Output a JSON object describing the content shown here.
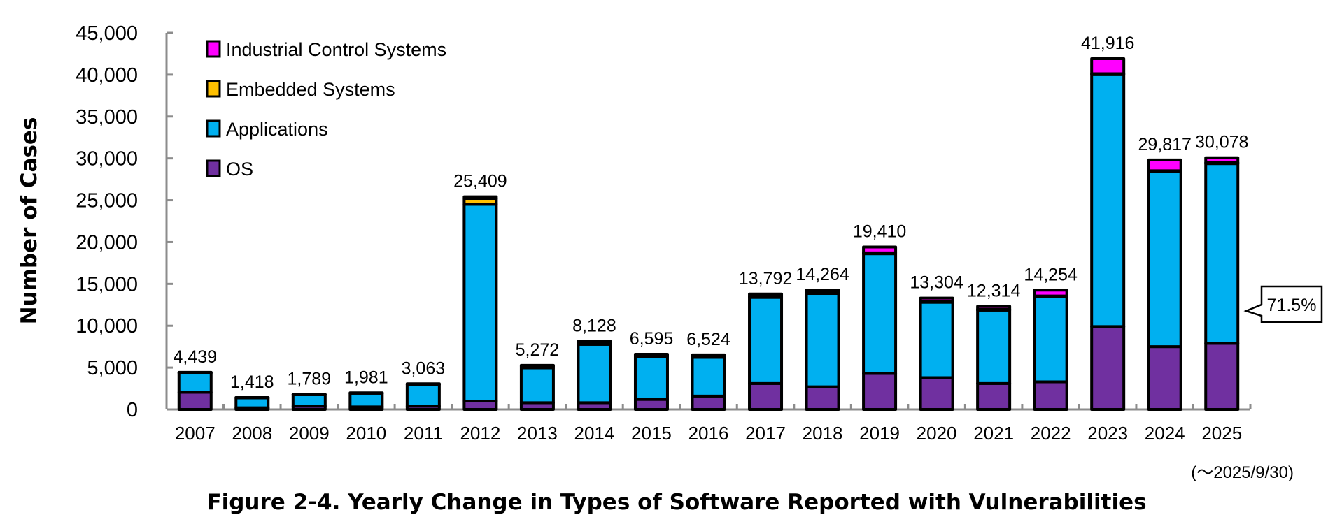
{
  "chart_data": {
    "type": "bar",
    "stacked": true,
    "title": "Figure 2-4. Yearly Change in Types of Software Reported with Vulnerabilities",
    "xlabel": "",
    "ylabel": "Number of Cases",
    "ylim": [
      0,
      45000
    ],
    "yticks": [
      0,
      5000,
      10000,
      15000,
      20000,
      25000,
      30000,
      35000,
      40000,
      45000
    ],
    "ytick_labels": [
      "0",
      "5,000",
      "10,000",
      "15,000",
      "20,000",
      "25,000",
      "30,000",
      "35,000",
      "40,000",
      "45,000"
    ],
    "grid": false,
    "legend_position": "top-left",
    "categories": [
      "2007",
      "2008",
      "2009",
      "2010",
      "2011",
      "2012",
      "2013",
      "2014",
      "2015",
      "2016",
      "2017",
      "2018",
      "2019",
      "2020",
      "2021",
      "2022",
      "2023",
      "2024",
      "2025"
    ],
    "series": [
      {
        "name": "OS",
        "color": "#7030a0",
        "values": [
          2050,
          200,
          400,
          300,
          400,
          1000,
          800,
          800,
          1200,
          1600,
          3100,
          2700,
          4300,
          3800,
          3100,
          3300,
          9900,
          7500,
          7900
        ]
      },
      {
        "name": "Applications",
        "color": "#00b0f0",
        "values": [
          2289,
          1178,
          1349,
          1631,
          2593,
          23509,
          4172,
          6978,
          5145,
          4624,
          10292,
          11164,
          14310,
          9004,
          8764,
          10154,
          30116,
          20917,
          21478
        ]
      },
      {
        "name": "Embedded Systems",
        "color": "#ffc000",
        "values": [
          50,
          30,
          30,
          30,
          40,
          700,
          200,
          200,
          150,
          150,
          100,
          100,
          100,
          100,
          100,
          100,
          100,
          100,
          100
        ]
      },
      {
        "name": "Industrial Control Systems",
        "color": "#ff00ff",
        "values": [
          50,
          10,
          10,
          20,
          30,
          200,
          100,
          150,
          100,
          150,
          300,
          300,
          700,
          400,
          350,
          700,
          1800,
          1300,
          600
        ]
      }
    ],
    "totals": [
      4439,
      1418,
      1789,
      1981,
      3063,
      25409,
      5272,
      8128,
      6595,
      6524,
      13792,
      14264,
      19410,
      13304,
      12314,
      14254,
      41916,
      29817,
      30078
    ],
    "total_labels": [
      "4,439",
      "1,418",
      "1,789",
      "1,981",
      "3,063",
      "25,409",
      "5,272",
      "8,128",
      "6,595",
      "6,524",
      "13,792",
      "14,264",
      "19,410",
      "13,304",
      "12,314",
      "14,254",
      "41,916",
      "29,817",
      "30,078"
    ],
    "legend_order": [
      "Industrial Control Systems",
      "Embedded Systems",
      "Applications",
      "OS"
    ],
    "annotations": [
      {
        "text": "71.5%",
        "category": "2025",
        "series": "Applications"
      }
    ],
    "note": "(～2025/9/30)"
  }
}
